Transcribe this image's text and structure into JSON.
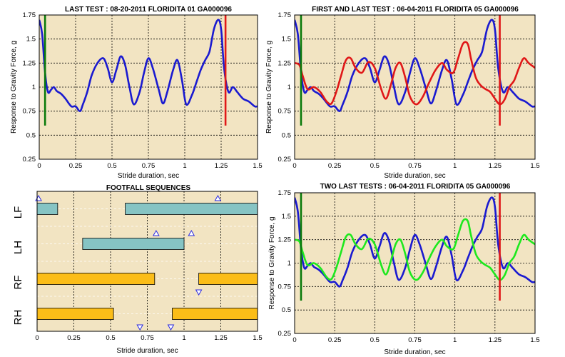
{
  "colors": {
    "plot_bg": "#f2e4c2",
    "grid": "#000000",
    "blue": "#1a1ad0",
    "red": "#e01818",
    "green_series": "#1ee81e",
    "marker_green": "#0a7a0a",
    "marker_red": "#e01818",
    "bar_teal": "#86c4c4",
    "bar_orange": "#fbbd18",
    "triangle": "#2a2ae0"
  },
  "chart_data": [
    {
      "id": "last_test",
      "type": "line",
      "title": "LAST TEST : 08-20-2011 FLORIDITA 01 GA000096",
      "xlabel": "Stride duration, sec",
      "ylabel": "Response to Gravity Force, g",
      "xlim": [
        0,
        1.5
      ],
      "ylim": [
        0.25,
        1.75
      ],
      "xticks": [
        "0",
        "0.25",
        "0.5",
        "0.75",
        "1",
        "1.25",
        "1.5"
      ],
      "yticks": [
        "0.25",
        "0.5",
        "0.75",
        "1",
        "1.25",
        "1.5",
        "1.75"
      ],
      "grid": true,
      "series": [
        {
          "color": "blue",
          "x": [
            0,
            0.02,
            0.04,
            0.06,
            0.08,
            0.1,
            0.12,
            0.15,
            0.18,
            0.22,
            0.25,
            0.28,
            0.3,
            0.33,
            0.36,
            0.4,
            0.44,
            0.47,
            0.5,
            0.53,
            0.56,
            0.59,
            0.62,
            0.65,
            0.69,
            0.72,
            0.75,
            0.78,
            0.82,
            0.85,
            0.88,
            0.92,
            0.95,
            0.98,
            1.01,
            1.05,
            1.08,
            1.11,
            1.14,
            1.17,
            1.2,
            1.23,
            1.25,
            1.27,
            1.3,
            1.33,
            1.36,
            1.4,
            1.44,
            1.48,
            1.5
          ],
          "y": [
            1.7,
            1.55,
            1.15,
            0.95,
            0.97,
            1.0,
            0.96,
            0.93,
            0.88,
            0.8,
            0.8,
            0.75,
            0.82,
            0.95,
            1.12,
            1.25,
            1.3,
            1.2,
            1.05,
            1.18,
            1.32,
            1.23,
            1.0,
            0.82,
            0.95,
            1.15,
            1.3,
            1.2,
            0.98,
            0.83,
            0.95,
            1.18,
            1.28,
            1.08,
            0.82,
            0.92,
            1.05,
            1.18,
            1.28,
            1.37,
            1.6,
            1.7,
            1.6,
            1.2,
            0.95,
            1.0,
            0.95,
            0.88,
            0.85,
            0.8,
            0.8
          ]
        }
      ],
      "markers": [
        {
          "x": 0.04,
          "color": "marker_green",
          "y0": 0.6,
          "y1": 1.75
        },
        {
          "x": 1.28,
          "color": "marker_red",
          "y0": 0.6,
          "y1": 1.75
        }
      ]
    },
    {
      "id": "first_and_last",
      "type": "line",
      "title": "FIRST AND LAST TEST : 06-04-2011 FLORIDITA 05 GA000096",
      "xlabel": "Stride duration, sec",
      "ylabel": "Response to Gravity Force, g",
      "xlim": [
        0,
        1.5
      ],
      "ylim": [
        0.25,
        1.75
      ],
      "xticks": [
        "0",
        "0.25",
        "0.5",
        "0.75",
        "1",
        "1.25",
        "1.5"
      ],
      "yticks": [
        "0.25",
        "0.5",
        "0.75",
        "1",
        "1.25",
        "1.5",
        "1.75"
      ],
      "grid": true,
      "series": [
        {
          "color": "blue",
          "x": [
            0,
            0.02,
            0.04,
            0.06,
            0.08,
            0.1,
            0.12,
            0.15,
            0.18,
            0.22,
            0.25,
            0.28,
            0.3,
            0.33,
            0.36,
            0.4,
            0.44,
            0.47,
            0.5,
            0.53,
            0.56,
            0.59,
            0.62,
            0.65,
            0.69,
            0.72,
            0.75,
            0.78,
            0.82,
            0.85,
            0.88,
            0.92,
            0.95,
            0.98,
            1.01,
            1.05,
            1.08,
            1.11,
            1.14,
            1.17,
            1.2,
            1.23,
            1.25,
            1.27,
            1.3,
            1.33,
            1.36,
            1.4,
            1.44,
            1.48,
            1.5
          ],
          "y": [
            1.7,
            1.55,
            1.15,
            0.95,
            0.97,
            1.0,
            0.96,
            0.93,
            0.88,
            0.8,
            0.8,
            0.75,
            0.82,
            0.95,
            1.12,
            1.25,
            1.3,
            1.2,
            1.05,
            1.18,
            1.32,
            1.23,
            1.0,
            0.82,
            0.95,
            1.15,
            1.3,
            1.2,
            0.98,
            0.83,
            0.95,
            1.18,
            1.28,
            1.08,
            0.82,
            0.92,
            1.05,
            1.18,
            1.28,
            1.37,
            1.6,
            1.7,
            1.6,
            1.2,
            0.95,
            1.0,
            0.95,
            0.88,
            0.85,
            0.8,
            0.8
          ]
        },
        {
          "color": "red",
          "x": [
            0,
            0.03,
            0.05,
            0.08,
            0.12,
            0.16,
            0.2,
            0.23,
            0.26,
            0.29,
            0.32,
            0.35,
            0.38,
            0.42,
            0.46,
            0.5,
            0.54,
            0.57,
            0.6,
            0.63,
            0.66,
            0.69,
            0.72,
            0.76,
            0.8,
            0.84,
            0.88,
            0.92,
            0.95,
            0.99,
            1.02,
            1.05,
            1.08,
            1.1,
            1.13,
            1.16,
            1.19,
            1.22,
            1.25,
            1.28,
            1.31,
            1.34,
            1.37,
            1.4,
            1.43,
            1.46,
            1.5
          ],
          "y": [
            1.25,
            1.23,
            1.12,
            0.98,
            1.0,
            0.95,
            0.85,
            0.83,
            0.95,
            1.12,
            1.28,
            1.3,
            1.2,
            1.15,
            1.26,
            1.2,
            0.98,
            0.88,
            1.02,
            1.2,
            1.25,
            1.1,
            0.9,
            0.82,
            0.9,
            1.05,
            1.18,
            1.25,
            1.18,
            1.15,
            1.3,
            1.45,
            1.45,
            1.3,
            1.1,
            1.02,
            0.98,
            0.95,
            0.88,
            0.82,
            0.87,
            1.0,
            1.07,
            1.2,
            1.3,
            1.25,
            1.2
          ]
        }
      ],
      "markers": [
        {
          "x": 0.04,
          "color": "marker_green",
          "y0": 0.6,
          "y1": 1.75
        },
        {
          "x": 1.28,
          "color": "marker_red",
          "y0": 0.6,
          "y1": 1.75
        }
      ]
    },
    {
      "id": "footfall",
      "type": "bar",
      "orientation": "horizontal-timeline",
      "title": "FOOTFALL SEQUENCES",
      "xlabel": "Stride duration, sec",
      "xlim": [
        0,
        1.5
      ],
      "xticks": [
        "0",
        "0.25",
        "0.5",
        "0.75",
        "1",
        "1.25",
        "1.5"
      ],
      "lanes": [
        "LF",
        "LH",
        "RF",
        "RH"
      ],
      "bars": [
        {
          "lane": "LF",
          "start": 0.0,
          "end": 0.14,
          "color": "bar_teal"
        },
        {
          "lane": "LF",
          "start": 0.6,
          "end": 1.5,
          "color": "bar_teal"
        },
        {
          "lane": "LH",
          "start": 0.31,
          "end": 1.0,
          "color": "bar_teal"
        },
        {
          "lane": "RF",
          "start": 0.0,
          "end": 0.8,
          "color": "bar_orange"
        },
        {
          "lane": "RF",
          "start": 1.1,
          "end": 1.5,
          "color": "bar_orange"
        },
        {
          "lane": "RH",
          "start": 0.0,
          "end": 0.52,
          "color": "bar_orange"
        },
        {
          "lane": "RH",
          "start": 0.92,
          "end": 1.5,
          "color": "bar_orange"
        }
      ],
      "events": [
        {
          "lane": "LF",
          "x": 0.01,
          "dir": "up"
        },
        {
          "lane": "LF",
          "x": 1.23,
          "dir": "up"
        },
        {
          "lane": "LH",
          "x": 0.81,
          "dir": "up"
        },
        {
          "lane": "LH",
          "x": 1.05,
          "dir": "up"
        },
        {
          "lane": "RF",
          "x": 1.1,
          "dir": "down"
        },
        {
          "lane": "RH",
          "x": 0.7,
          "dir": "down"
        },
        {
          "lane": "RH",
          "x": 0.91,
          "dir": "down"
        }
      ]
    },
    {
      "id": "two_last",
      "type": "line",
      "title": "TWO LAST TESTS : 06-04-2011 FLORIDITA 05 GA000096",
      "xlabel": "Stride duration, sec",
      "ylabel": "Response to Gravity Force, g",
      "xlim": [
        0,
        1.5
      ],
      "ylim": [
        0.25,
        1.75
      ],
      "xticks": [
        "0",
        "0.25",
        "0.5",
        "0.75",
        "1",
        "1.25",
        "1.5"
      ],
      "yticks": [
        "0.25",
        "0.5",
        "0.75",
        "1",
        "1.25",
        "1.5",
        "1.75"
      ],
      "grid": true,
      "series": [
        {
          "color": "blue",
          "x": [
            0,
            0.02,
            0.04,
            0.06,
            0.08,
            0.1,
            0.12,
            0.15,
            0.18,
            0.22,
            0.25,
            0.28,
            0.3,
            0.33,
            0.36,
            0.4,
            0.44,
            0.47,
            0.5,
            0.53,
            0.56,
            0.59,
            0.62,
            0.65,
            0.69,
            0.72,
            0.75,
            0.78,
            0.82,
            0.85,
            0.88,
            0.92,
            0.95,
            0.98,
            1.01,
            1.05,
            1.08,
            1.11,
            1.14,
            1.17,
            1.2,
            1.23,
            1.25,
            1.27,
            1.3,
            1.33,
            1.36,
            1.4,
            1.44,
            1.48,
            1.5
          ],
          "y": [
            1.7,
            1.55,
            1.15,
            0.95,
            0.97,
            1.0,
            0.96,
            0.93,
            0.88,
            0.8,
            0.8,
            0.75,
            0.82,
            0.95,
            1.12,
            1.25,
            1.3,
            1.2,
            1.05,
            1.18,
            1.32,
            1.23,
            1.0,
            0.82,
            0.95,
            1.15,
            1.3,
            1.2,
            0.98,
            0.83,
            0.95,
            1.18,
            1.28,
            1.08,
            0.82,
            0.92,
            1.05,
            1.18,
            1.28,
            1.37,
            1.6,
            1.7,
            1.6,
            1.2,
            0.95,
            1.0,
            0.95,
            0.88,
            0.85,
            0.8,
            0.8
          ]
        },
        {
          "color": "green_series",
          "x": [
            0,
            0.03,
            0.05,
            0.08,
            0.12,
            0.16,
            0.2,
            0.23,
            0.26,
            0.29,
            0.32,
            0.35,
            0.38,
            0.42,
            0.46,
            0.5,
            0.54,
            0.57,
            0.6,
            0.63,
            0.66,
            0.69,
            0.72,
            0.76,
            0.8,
            0.84,
            0.88,
            0.92,
            0.95,
            0.99,
            1.02,
            1.05,
            1.08,
            1.1,
            1.13,
            1.16,
            1.19,
            1.22,
            1.25,
            1.28,
            1.31,
            1.34,
            1.37,
            1.4,
            1.43,
            1.46,
            1.5
          ],
          "y": [
            1.25,
            1.23,
            1.12,
            0.98,
            1.0,
            0.95,
            0.85,
            0.83,
            0.95,
            1.12,
            1.28,
            1.3,
            1.2,
            1.15,
            1.26,
            1.2,
            0.98,
            0.88,
            1.02,
            1.2,
            1.25,
            1.1,
            0.9,
            0.82,
            0.9,
            1.05,
            1.18,
            1.25,
            1.18,
            1.15,
            1.3,
            1.45,
            1.45,
            1.3,
            1.1,
            1.02,
            0.98,
            0.95,
            0.88,
            0.82,
            0.87,
            1.0,
            1.07,
            1.2,
            1.3,
            1.25,
            1.2
          ]
        }
      ],
      "markers": [
        {
          "x": 0.04,
          "color": "marker_green",
          "y0": 0.6,
          "y1": 1.75
        },
        {
          "x": 1.28,
          "color": "marker_red",
          "y0": 0.6,
          "y1": 1.75
        }
      ]
    }
  ]
}
